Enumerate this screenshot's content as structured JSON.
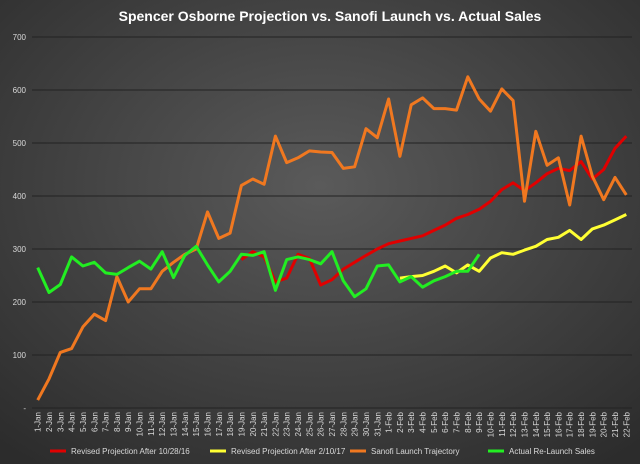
{
  "chart_data": {
    "type": "line",
    "title": "Spencer Osborne  Projection  vs. Sanofi  Launch  vs. Actual Sales",
    "categories": [
      "1-Jan",
      "2-Jan",
      "3-Jan",
      "4-Jan",
      "5-Jan",
      "6-Jan",
      "7-Jan",
      "8-Jan",
      "9-Jan",
      "10-Jan",
      "11-Jan",
      "12-Jan",
      "13-Jan",
      "14-Jan",
      "15-Jan",
      "16-Jan",
      "17-Jan",
      "18-Jan",
      "19-Jan",
      "20-Jan",
      "21-Jan",
      "22-Jan",
      "23-Jan",
      "24-Jan",
      "25-Jan",
      "26-Jan",
      "27-Jan",
      "28-Jan",
      "29-Jan",
      "30-Jan",
      "31-Jan",
      "1-Feb",
      "2-Feb",
      "3-Feb",
      "4-Feb",
      "5-Feb",
      "6-Feb",
      "7-Feb",
      "8-Feb",
      "9-Feb",
      "10-Feb",
      "11-Feb",
      "12-Feb",
      "13-Feb",
      "14-Feb",
      "15-Feb",
      "16-Feb",
      "17-Feb",
      "18-Feb",
      "19-Feb",
      "20-Feb",
      "21-Feb",
      "22-Feb"
    ],
    "ylim": [
      0,
      700
    ],
    "yticks": [
      {
        "value": 0,
        "label": "-"
      },
      100,
      200,
      300,
      400,
      500,
      600,
      700
    ],
    "grid": true,
    "legend": "bottom",
    "series": [
      {
        "name": "Revised Projection After 10/28/16",
        "color": "#e00000",
        "values": [
          null,
          null,
          null,
          null,
          null,
          null,
          null,
          null,
          null,
          null,
          null,
          null,
          null,
          null,
          null,
          null,
          null,
          null,
          280,
          295,
          285,
          238,
          245,
          290,
          282,
          232,
          242,
          262,
          275,
          288,
          300,
          310,
          315,
          320,
          325,
          335,
          345,
          358,
          365,
          375,
          390,
          412,
          425,
          410,
          425,
          442,
          452,
          448,
          465,
          432,
          450,
          490,
          513
        ]
      },
      {
        "name": "Revised Projection After 2/10/17",
        "color": "#ffff33",
        "values": [
          null,
          null,
          null,
          null,
          null,
          null,
          null,
          null,
          null,
          null,
          null,
          null,
          null,
          null,
          null,
          null,
          null,
          null,
          null,
          null,
          null,
          null,
          null,
          null,
          null,
          null,
          null,
          null,
          null,
          null,
          null,
          null,
          245,
          248,
          250,
          258,
          268,
          255,
          270,
          258,
          283,
          293,
          290,
          298,
          305,
          318,
          322,
          335,
          318,
          338,
          345,
          355,
          365
        ]
      },
      {
        "name": "Sanofi Launch Trajectory",
        "color": "#f07820",
        "values": [
          15,
          55,
          105,
          112,
          153,
          177,
          165,
          248,
          200,
          225,
          225,
          258,
          275,
          290,
          300,
          370,
          320,
          330,
          420,
          432,
          422,
          513,
          463,
          472,
          485,
          483,
          482,
          452,
          455,
          527,
          510,
          583,
          475,
          572,
          585,
          565,
          565,
          562,
          625,
          583,
          560,
          602,
          580,
          390,
          522,
          458,
          472,
          383,
          513,
          437,
          393,
          435,
          402
        ]
      },
      {
        "name": "Actual Re-Launch Sales",
        "color": "#22ee22",
        "values": [
          265,
          218,
          233,
          285,
          268,
          275,
          255,
          252,
          265,
          277,
          262,
          295,
          246,
          288,
          305,
          270,
          238,
          258,
          290,
          288,
          295,
          222,
          280,
          285,
          280,
          272,
          295,
          240,
          210,
          225,
          268,
          270,
          238,
          248,
          228,
          240,
          248,
          258,
          258,
          290,
          null,
          null,
          null,
          null,
          null,
          null,
          null,
          null,
          null,
          null,
          null,
          null,
          null
        ]
      }
    ]
  }
}
